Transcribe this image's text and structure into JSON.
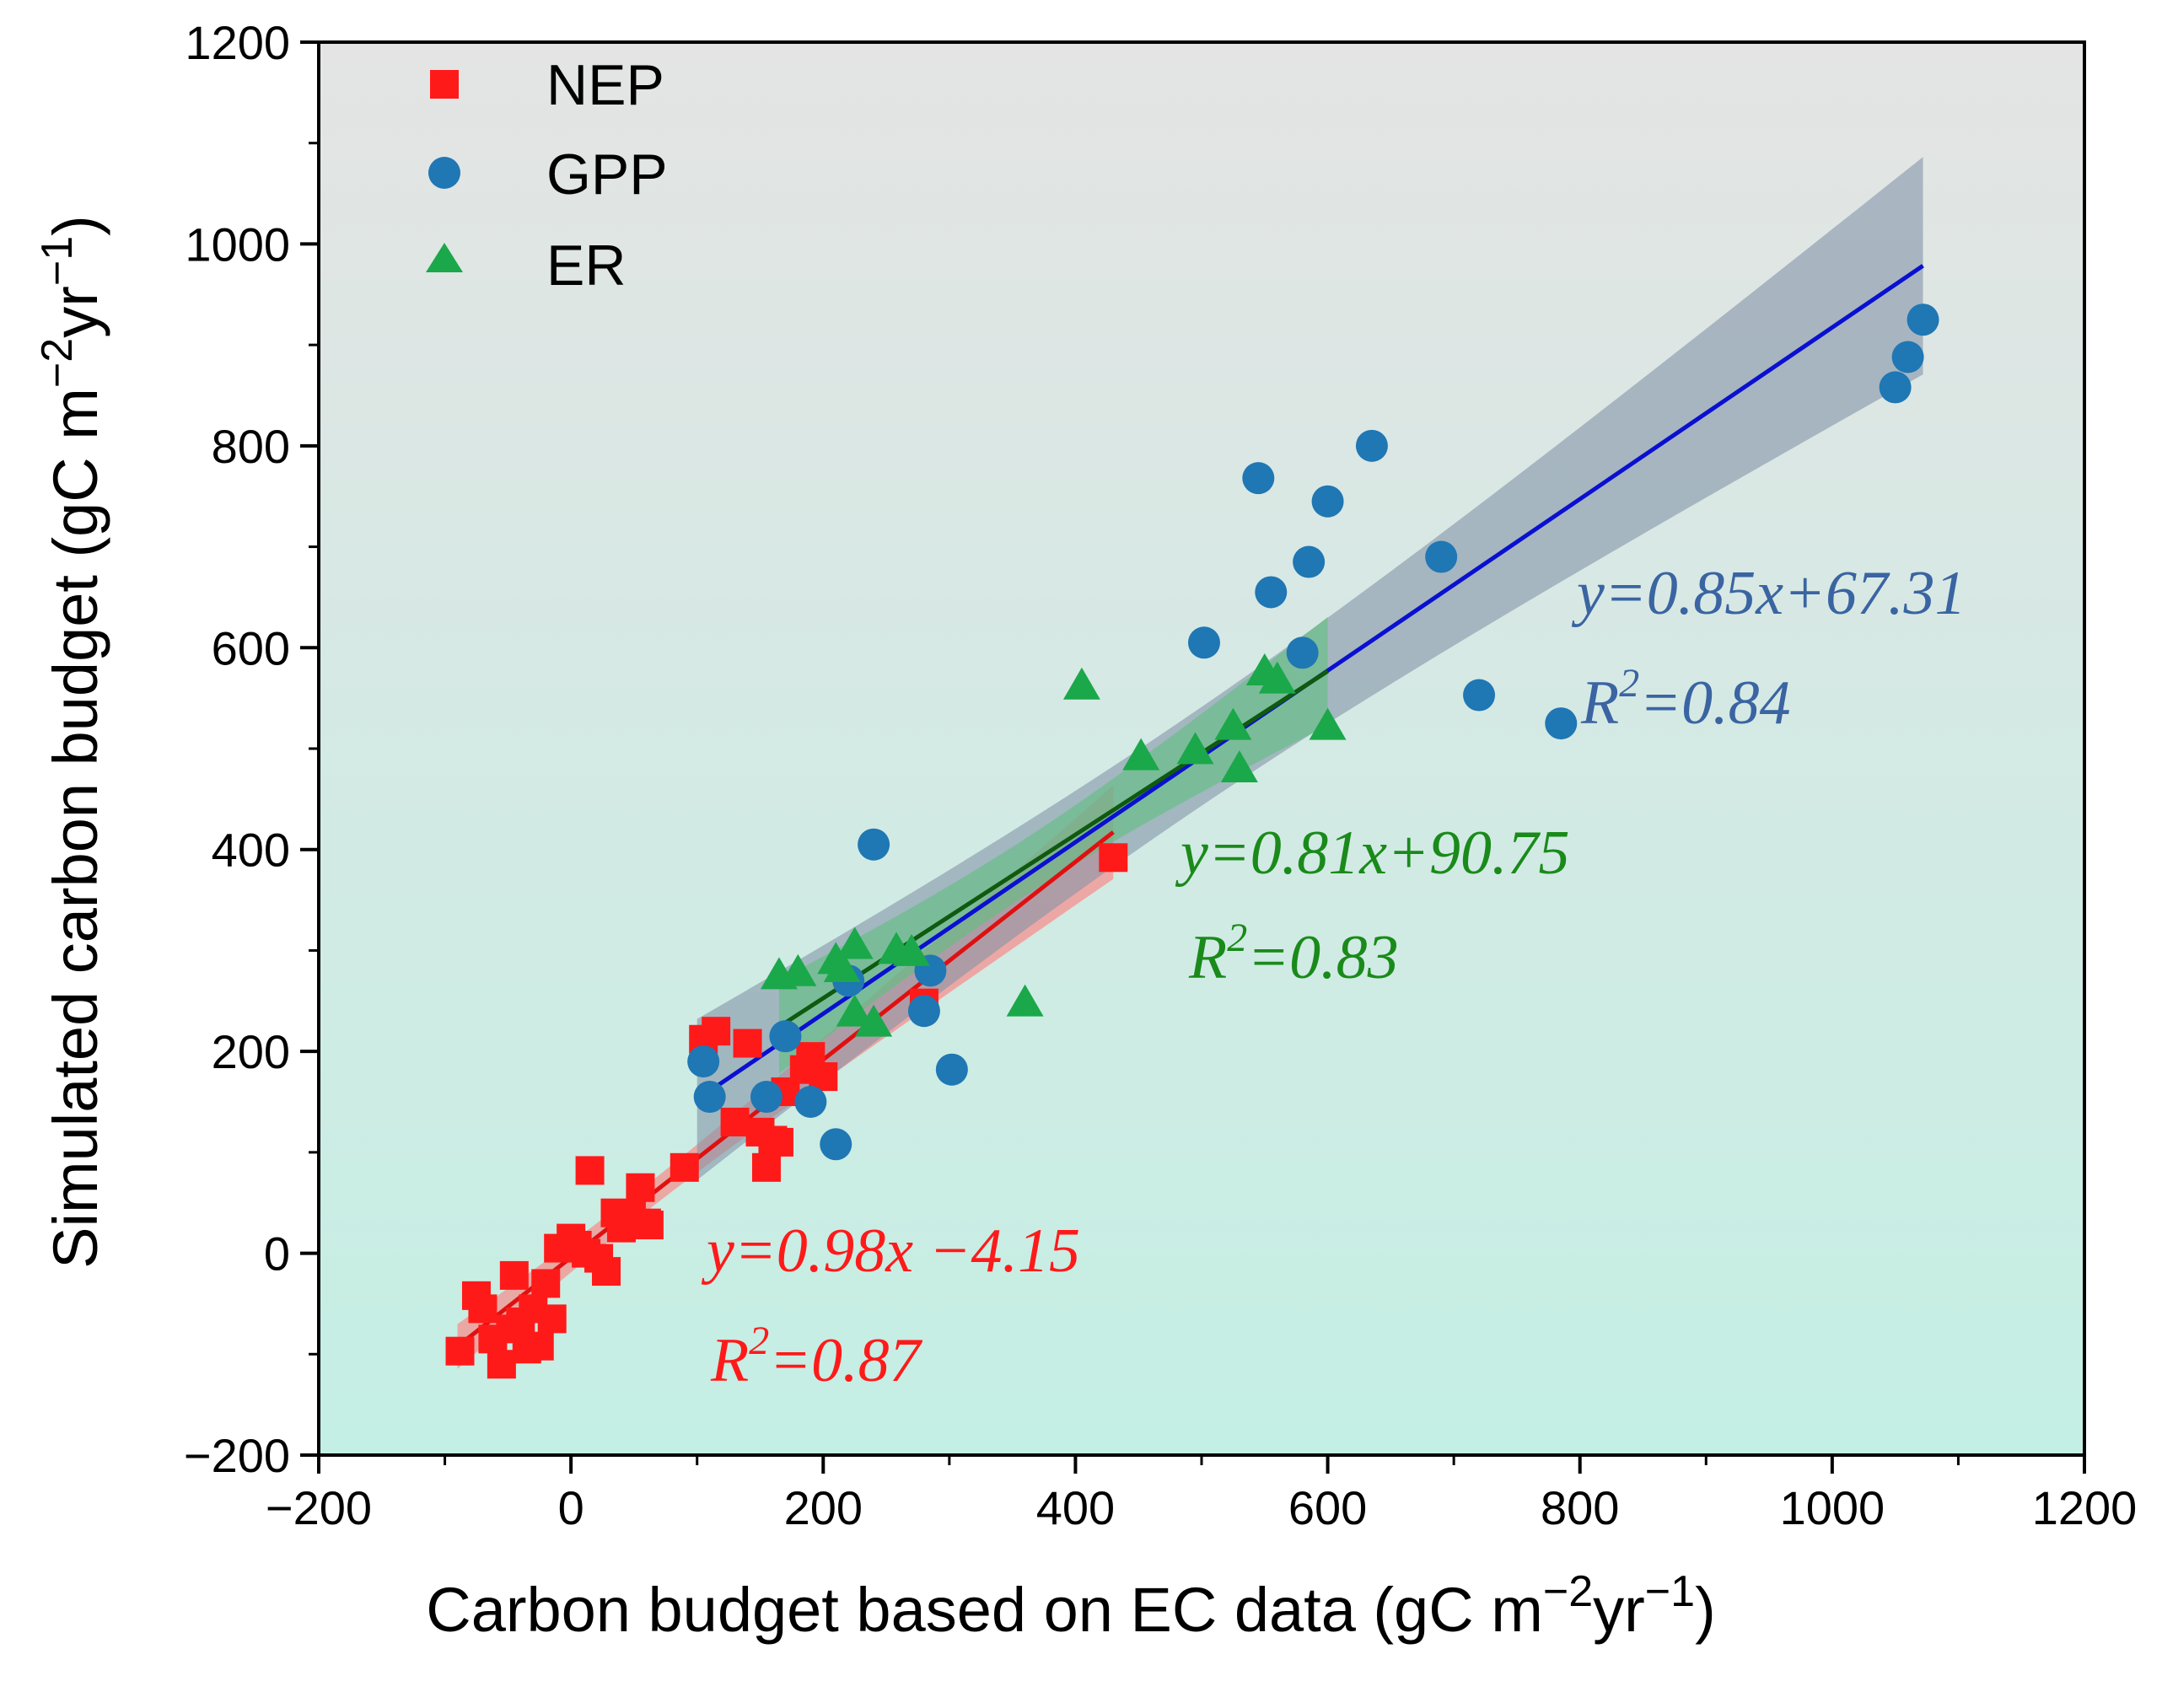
{
  "chart_data": {
    "type": "scatter",
    "xlabel": "Carbon budget based on EC data (gC m",
    "xlabel_sup1": "−2",
    "xlabel_mid": "yr",
    "xlabel_sup2": "−1",
    "xlabel_end": ")",
    "ylabel": "Simulated carbon budget (gC m",
    "ylabel_sup1": "−2",
    "ylabel_mid": "yr",
    "ylabel_sup2": "−1",
    "ylabel_end": ")",
    "xlim": [
      -200,
      1200
    ],
    "ylim": [
      -200,
      1200
    ],
    "xticks": [
      -200,
      0,
      200,
      400,
      600,
      800,
      1000,
      1200
    ],
    "yticks": [
      -200,
      0,
      200,
      400,
      600,
      800,
      1000,
      1200
    ],
    "xtick_labels": [
      "−200",
      "0",
      "200",
      "400",
      "600",
      "800",
      "1000",
      "1200"
    ],
    "ytick_labels": [
      "−200",
      "0",
      "200",
      "400",
      "600",
      "800",
      "1000",
      "1200"
    ],
    "legend_position": "top-left",
    "series": [
      {
        "name": "NEP",
        "marker": "square",
        "color": "#ff1a1a",
        "points": [
          [
            -88,
            -97
          ],
          [
            -75,
            -42
          ],
          [
            -70,
            -55
          ],
          [
            -62,
            -85
          ],
          [
            -55,
            -110
          ],
          [
            -48,
            -75
          ],
          [
            -45,
            -22
          ],
          [
            -40,
            -68
          ],
          [
            -35,
            -95
          ],
          [
            -30,
            -55
          ],
          [
            -25,
            -92
          ],
          [
            -20,
            -30
          ],
          [
            -15,
            -65
          ],
          [
            -10,
            5
          ],
          [
            0,
            15
          ],
          [
            5,
            8
          ],
          [
            12,
            0
          ],
          [
            15,
            82
          ],
          [
            22,
            -5
          ],
          [
            28,
            -18
          ],
          [
            35,
            40
          ],
          [
            40,
            25
          ],
          [
            48,
            38
          ],
          [
            55,
            65
          ],
          [
            60,
            30
          ],
          [
            62,
            28
          ],
          [
            90,
            85
          ],
          [
            105,
            212
          ],
          [
            115,
            220
          ],
          [
            130,
            130
          ],
          [
            140,
            208
          ],
          [
            150,
            120
          ],
          [
            155,
            85
          ],
          [
            160,
            112
          ],
          [
            165,
            110
          ],
          [
            170,
            160
          ],
          [
            185,
            182
          ],
          [
            190,
            195
          ],
          [
            200,
            175
          ],
          [
            280,
            248
          ],
          [
            430,
            392
          ]
        ],
        "fit": {
          "x_range": [
            -90,
            430
          ],
          "slope": 0.98,
          "intercept": -4.15,
          "band_color": "#ff7a7a"
        }
      },
      {
        "name": "GPP",
        "marker": "circle",
        "color": "#1f77b4",
        "points": [
          [
            105,
            190
          ],
          [
            110,
            155
          ],
          [
            155,
            155
          ],
          [
            170,
            215
          ],
          [
            190,
            150
          ],
          [
            210,
            108
          ],
          [
            220,
            270
          ],
          [
            240,
            405
          ],
          [
            280,
            240
          ],
          [
            285,
            280
          ],
          [
            302,
            182
          ],
          [
            502,
            605
          ],
          [
            545,
            768
          ],
          [
            555,
            655
          ],
          [
            580,
            595
          ],
          [
            585,
            685
          ],
          [
            600,
            745
          ],
          [
            635,
            800
          ],
          [
            690,
            690
          ],
          [
            720,
            553
          ],
          [
            785,
            525
          ],
          [
            1050,
            858
          ],
          [
            1060,
            888
          ],
          [
            1072,
            925
          ]
        ],
        "fit": {
          "x_range": [
            100,
            1072
          ],
          "slope": 0.85,
          "intercept": 67.31,
          "band_color": "#8394a8"
        }
      },
      {
        "name": "ER",
        "marker": "triangle",
        "color": "#1aa84a",
        "points": [
          [
            165,
            275
          ],
          [
            180,
            278
          ],
          [
            210,
            290
          ],
          [
            215,
            282
          ],
          [
            225,
            305
          ],
          [
            225,
            238
          ],
          [
            240,
            228
          ],
          [
            258,
            300
          ],
          [
            270,
            298
          ],
          [
            360,
            248
          ],
          [
            405,
            562
          ],
          [
            452,
            492
          ],
          [
            495,
            498
          ],
          [
            525,
            522
          ],
          [
            530,
            480
          ],
          [
            550,
            576
          ],
          [
            560,
            568
          ],
          [
            600,
            522
          ]
        ],
        "fit": {
          "x_range": [
            165,
            600
          ],
          "slope": 0.81,
          "intercept": 90.75,
          "band_color": "#5fbf7e"
        }
      }
    ],
    "annotations": [
      {
        "id": "gpp-eq",
        "equation": "y=0.85x+67.31",
        "r_prefix": "R",
        "r_sup": "2",
        "r_value": "=0.84",
        "color": "#3a64a2"
      },
      {
        "id": "er-eq",
        "equation": "y=0.81x+90.75",
        "r_prefix": "R",
        "r_sup": "2",
        "r_value": "=0.83",
        "color": "#1a8a1a"
      },
      {
        "id": "nep-eq",
        "equation": "y=0.98x −4.15",
        "r_prefix": "R",
        "r_sup": "2",
        "r_value": "=0.87",
        "color": "#ff1a1a"
      }
    ],
    "line_colors": {
      "NEP": "#e01010",
      "GPP": "#0a10d0",
      "ER": "#0f5a0f"
    },
    "background_gradient": {
      "top": "#e4e4e4",
      "bottom": "#c4efe4"
    }
  }
}
